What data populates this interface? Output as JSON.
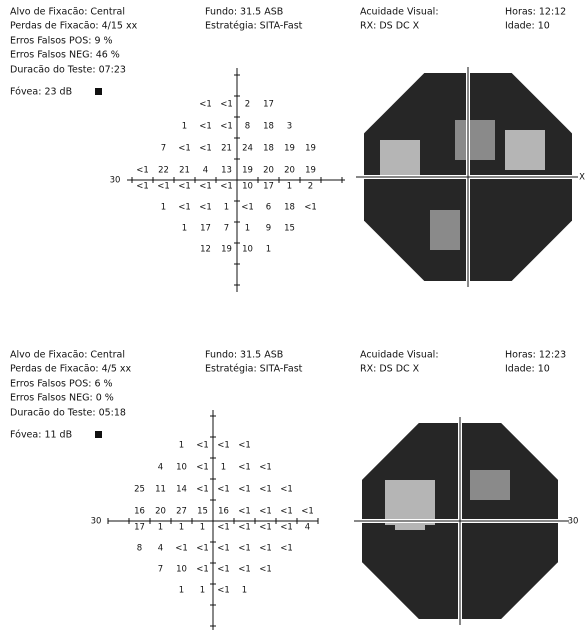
{
  "panels": [
    {
      "fixation_target": "Alvo de Fixacão: Central",
      "fixation_losses": "Perdas de Fixacão: 4/15 xx",
      "false_pos": "Erros Falsos POS:   9 %",
      "false_neg": "Erros Falsos NEG: 46 %",
      "duration": "Duracão do Teste: 07:23",
      "fovea": "Fóvea: 23 dB",
      "background": "Fundo: 31.5 ASB",
      "strategy": "Estratégia: SITA-Fast",
      "visual_acuity": "Acuidade Visual:",
      "rx": "RX:    DS    DC  X",
      "time": "Horas: 12:12",
      "age": "Idade: 10",
      "axis_left": "30",
      "axis_right": "X",
      "grid": [
        [
          null,
          null,
          null,
          "<1",
          "<1",
          "2",
          "17",
          null,
          null,
          null
        ],
        [
          null,
          null,
          "1",
          "<1",
          "<1",
          "8",
          "18",
          "3",
          null,
          null
        ],
        [
          null,
          "7",
          "<1",
          "<1",
          "21",
          "24",
          "18",
          "19",
          "19",
          null
        ],
        [
          "<1",
          "22",
          "21",
          "4",
          "13",
          "19",
          "20",
          "20",
          "19",
          null
        ],
        [
          "<1",
          "<1",
          "<1",
          "<1",
          "<1",
          "10",
          "17",
          "1",
          "2",
          null
        ],
        [
          null,
          "1",
          "<1",
          "<1",
          "1",
          "<1",
          "6",
          "18",
          "<1",
          null
        ],
        [
          null,
          null,
          "1",
          "17",
          "7",
          "1",
          "9",
          "15",
          null,
          null
        ],
        [
          null,
          null,
          null,
          "12",
          "19",
          "10",
          "1",
          null,
          null,
          null
        ]
      ]
    },
    {
      "fixation_target": "Alvo de Fixacão: Central",
      "fixation_losses": "Perdas de Fixacão: 4/5 xx",
      "false_pos": "Erros Falsos POS:  6 %",
      "false_neg": "Erros Falsos NEG:  0 %",
      "duration": "Duracão do Teste: 05:18",
      "fovea": "Fóvea: 11 dB",
      "background": "Fundo: 31.5 ASB",
      "strategy": "Estratégia: SITA-Fast",
      "visual_acuity": "Acuidade Visual:",
      "rx": "RX:    DS    DC  X",
      "time": "Horas: 12:23",
      "age": "Idade: 10",
      "axis_left": "30",
      "axis_right": "30",
      "grid": [
        [
          null,
          null,
          null,
          "1",
          "<1",
          "<1",
          "<1",
          null,
          null,
          null
        ],
        [
          null,
          null,
          "4",
          "10",
          "<1",
          "1",
          "<1",
          "<1",
          null,
          null
        ],
        [
          null,
          "25",
          "11",
          "14",
          "<1",
          "<1",
          "<1",
          "<1",
          "<1",
          null
        ],
        [
          null,
          "16",
          "20",
          "27",
          "15",
          "16",
          "<1",
          "<1",
          "<1",
          "<1"
        ],
        [
          null,
          "17",
          "1",
          "1",
          "1",
          "<1",
          "<1",
          "<1",
          "<1",
          "4"
        ],
        [
          null,
          "8",
          "4",
          "<1",
          "<1",
          "<1",
          "<1",
          "<1",
          "<1",
          null
        ],
        [
          null,
          null,
          "7",
          "10",
          "<1",
          "<1",
          "<1",
          "<1",
          null,
          null
        ],
        [
          null,
          null,
          null,
          "1",
          "1",
          "<1",
          "1",
          null,
          null,
          null
        ]
      ]
    }
  ]
}
